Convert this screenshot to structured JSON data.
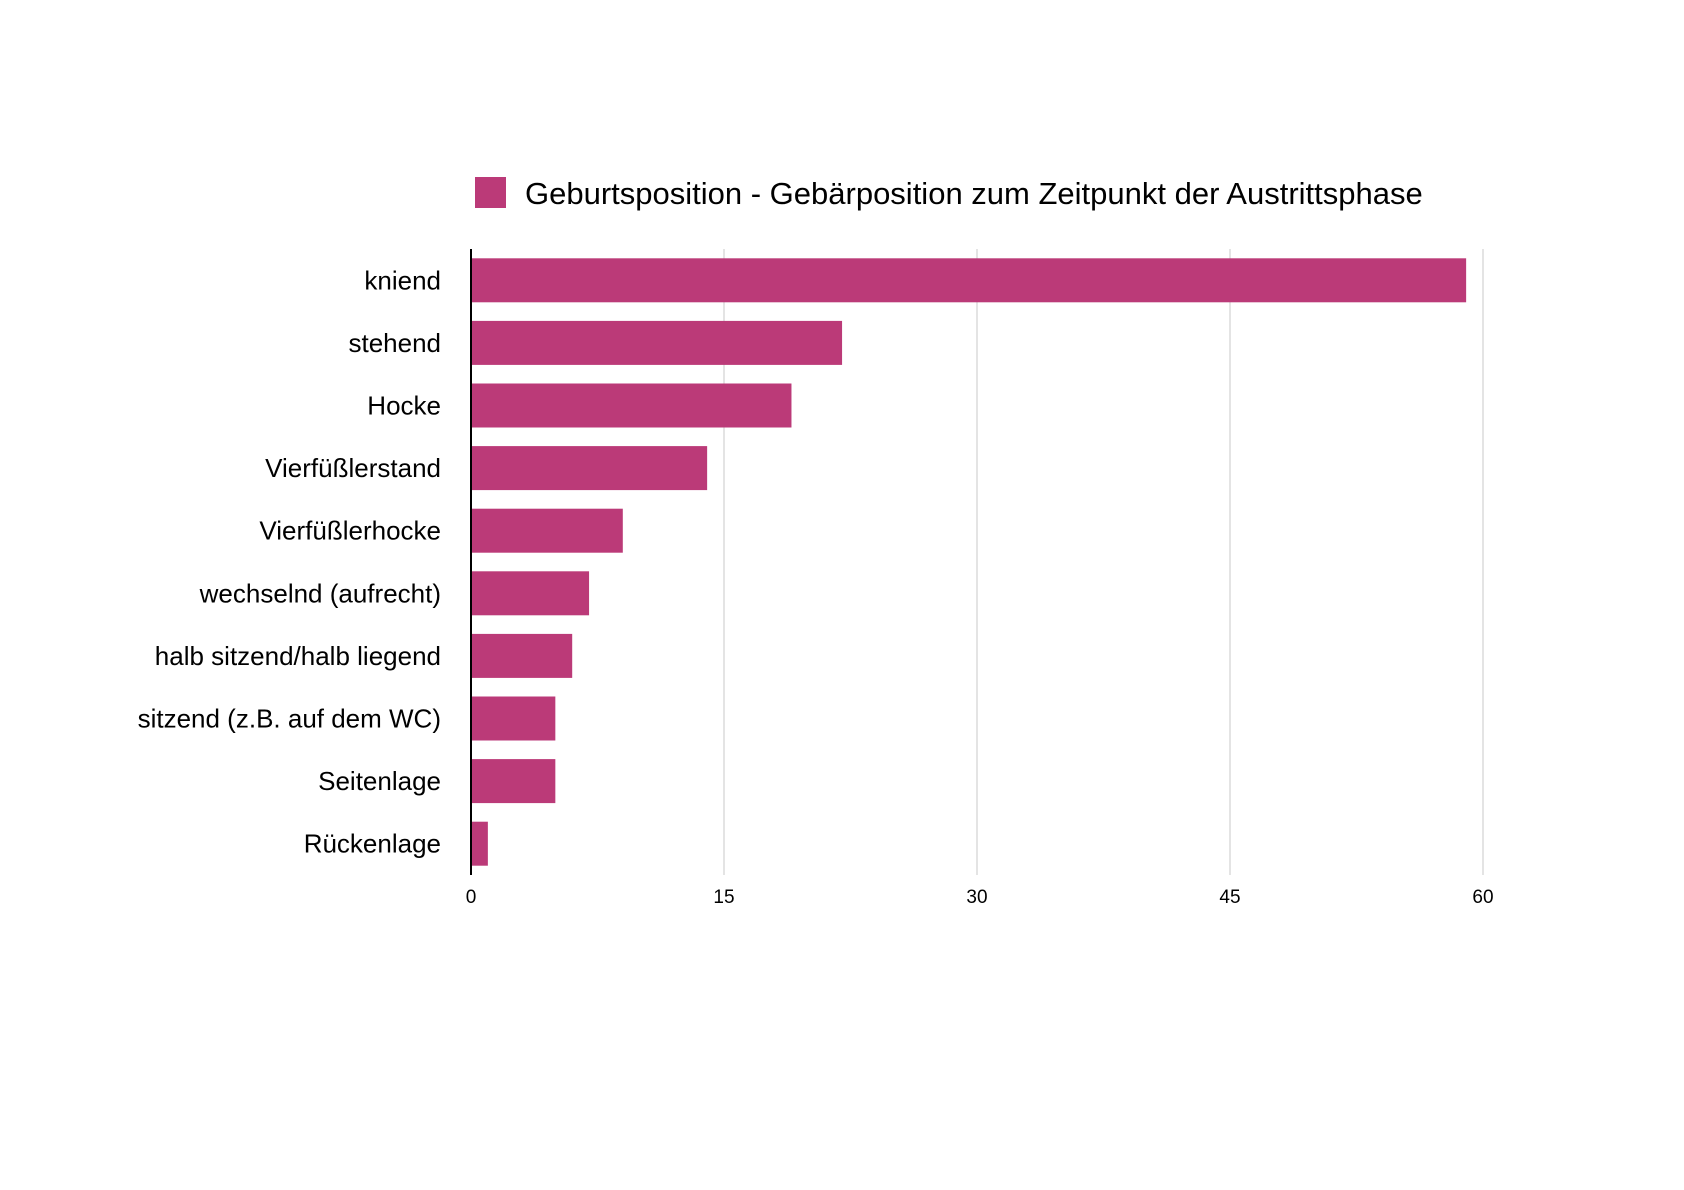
{
  "chart_data": {
    "type": "bar",
    "orientation": "horizontal",
    "legend": {
      "label": "Geburtsposition - Gebärposition zum Zeitpunkt der Austrittsphase",
      "position": "top"
    },
    "categories": [
      "kniend",
      "stehend",
      "Hocke",
      "Vierfüßlerstand",
      "Vierfüßlerhocke",
      "wechselnd (aufrecht)",
      "halb sitzend/halb liegend",
      "sitzend (z.B. auf dem WC)",
      "Seitenlage",
      "Rückenlage"
    ],
    "series": [
      {
        "name": "Geburtsposition - Gebärposition zum Zeitpunkt der Austrittsphase",
        "values": [
          59,
          22,
          19,
          14,
          9,
          7,
          6,
          5,
          5,
          1
        ],
        "color": "#bb3a78"
      }
    ],
    "xlim": [
      0,
      60
    ],
    "xticks": [
      "0",
      "15",
      "30",
      "45",
      "60"
    ],
    "grid": "vertical"
  }
}
